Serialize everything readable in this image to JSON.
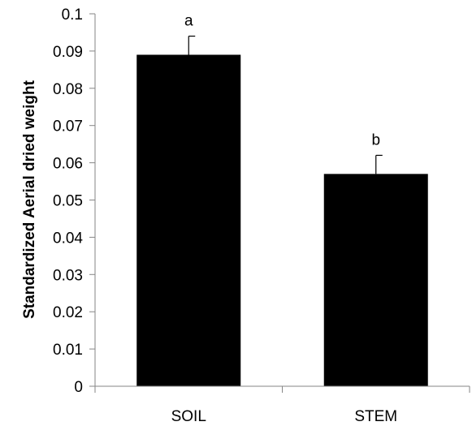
{
  "chart_data": {
    "type": "bar",
    "categories": [
      "SOIL",
      "STEM"
    ],
    "values": [
      0.089,
      0.057
    ],
    "errors": [
      0.005,
      0.005
    ],
    "significance_labels": [
      "a",
      "b"
    ],
    "title": "",
    "xlabel": "",
    "ylabel": "Standardized Aerial dried weight",
    "ylim": [
      0,
      0.1
    ],
    "yticks": [
      0,
      0.01,
      0.02,
      0.03,
      0.04,
      0.05,
      0.06,
      0.07,
      0.08,
      0.09,
      0.1
    ],
    "ytick_labels": [
      "0",
      "0.01",
      "0.02",
      "0.03",
      "0.04",
      "0.05",
      "0.06",
      "0.07",
      "0.08",
      "0.09",
      "0.1"
    ],
    "grid": false,
    "legend": "none",
    "bar_color": "#000000"
  }
}
